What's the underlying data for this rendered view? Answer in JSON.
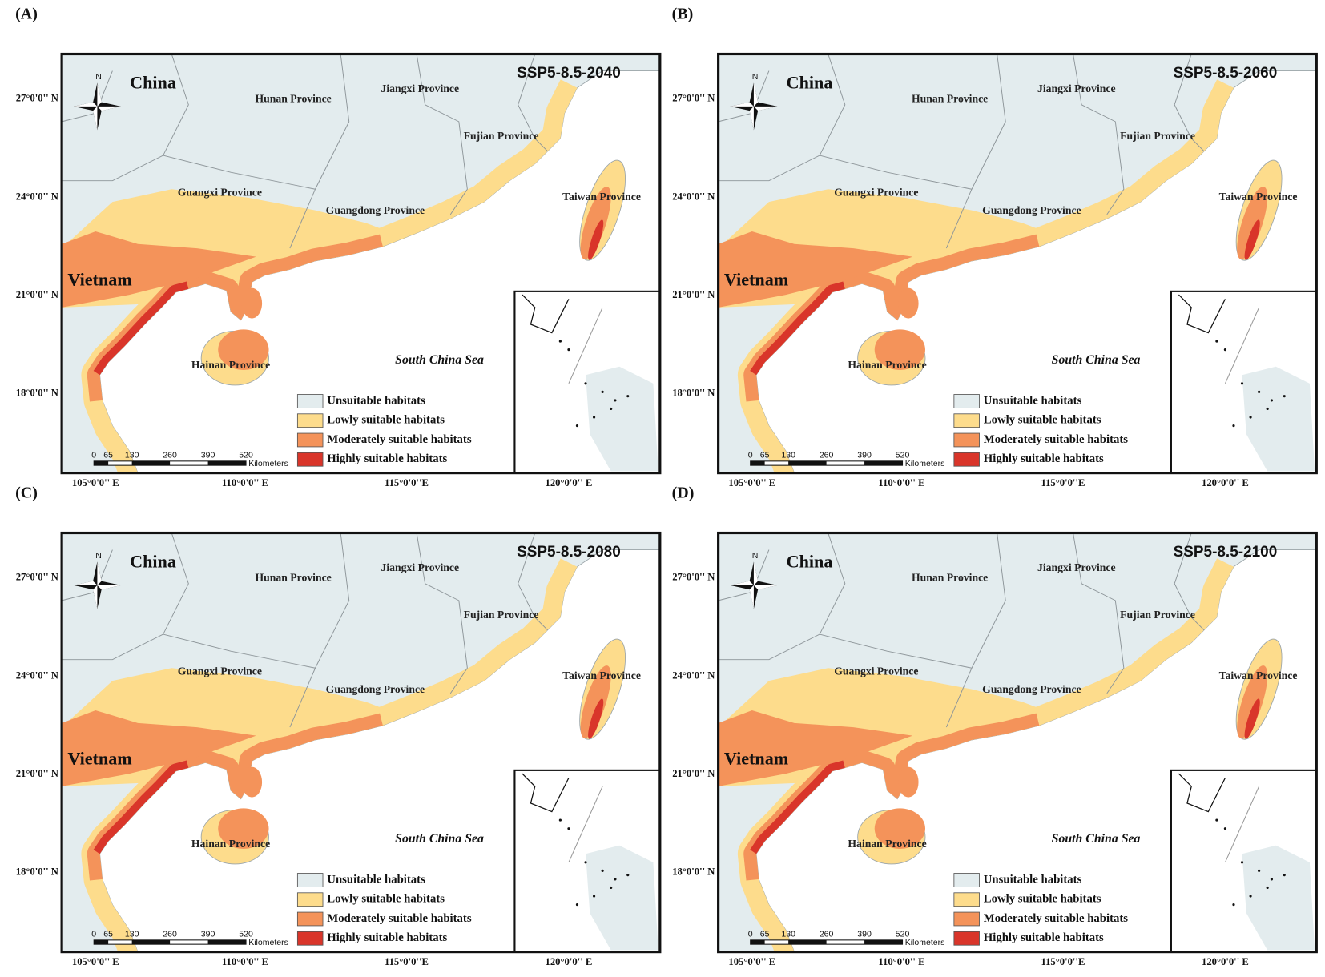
{
  "panels": [
    {
      "label": "(A)",
      "scenario": "SSP5-8.5-2040",
      "countries": [
        "China",
        "Vietnam"
      ],
      "provinces": [
        "Hunan Province",
        "Jiangxi Province",
        "Fujian Province",
        "Guangxi Province",
        "Guangdong Province",
        "Taiwan Province",
        "Hainan Province"
      ],
      "sea": "South China Sea",
      "legend": [
        {
          "label": "Unsuitable habitats",
          "color": "#e3ecee"
        },
        {
          "label": "Lowly suitable habitats",
          "color": "#fddc8c"
        },
        {
          "label": "Moderately suitable habitats",
          "color": "#f4935a"
        },
        {
          "label": "Highly suitable habitats",
          "color": "#d9352a"
        }
      ],
      "scale": {
        "ticks": [
          0,
          65,
          130,
          260,
          390,
          520
        ],
        "unit": "Kilometers"
      },
      "lat_ticks": [
        "27°0'0'' N",
        "24°0'0'' N",
        "21°0'0'' N",
        "18°0'0'' N"
      ],
      "lon_ticks": [
        "105°0'0'' E",
        "110°0'0'' E",
        "115°0'0''E",
        "120°0'0'' E"
      ]
    },
    {
      "label": "(B)",
      "scenario": "SSP5-8.5-2060",
      "countries": [
        "China",
        "Vietnam"
      ],
      "provinces": [
        "Hunan Province",
        "Jiangxi Province",
        "Fujian Province",
        "Guangxi Province",
        "Guangdong Province",
        "Taiwan Province",
        "Hainan Province"
      ],
      "sea": "South China Sea",
      "legend": [
        {
          "label": "Unsuitable habitats",
          "color": "#e3ecee"
        },
        {
          "label": "Lowly suitable habitats",
          "color": "#fddc8c"
        },
        {
          "label": "Moderately suitable habitats",
          "color": "#f4935a"
        },
        {
          "label": "Highly suitable habitats",
          "color": "#d9352a"
        }
      ],
      "scale": {
        "ticks": [
          0,
          65,
          130,
          260,
          390,
          520
        ],
        "unit": "Kilometers"
      },
      "lat_ticks": [
        "27°0'0'' N",
        "24°0'0'' N",
        "21°0'0'' N",
        "18°0'0'' N"
      ],
      "lon_ticks": [
        "105°0'0'' E",
        "110°0'0'' E",
        "115°0'0''E",
        "120°0'0'' E"
      ]
    },
    {
      "label": "(C)",
      "scenario": "SSP5-8.5-2080",
      "countries": [
        "China",
        "Vietnam"
      ],
      "provinces": [
        "Hunan Province",
        "Jiangxi Province",
        "Fujian Province",
        "Guangxi Province",
        "Guangdong Province",
        "Taiwan Province",
        "Hainan Province"
      ],
      "sea": "South China Sea",
      "legend": [
        {
          "label": "Unsuitable habitats",
          "color": "#e3ecee"
        },
        {
          "label": "Lowly suitable habitats",
          "color": "#fddc8c"
        },
        {
          "label": "Moderately suitable habitats",
          "color": "#f4935a"
        },
        {
          "label": "Highly suitable habitats",
          "color": "#d9352a"
        }
      ],
      "scale": {
        "ticks": [
          0,
          65,
          130,
          260,
          390,
          520
        ],
        "unit": "Kilometers"
      },
      "lat_ticks": [
        "27°0'0'' N",
        "24°0'0'' N",
        "21°0'0'' N",
        "18°0'0'' N"
      ],
      "lon_ticks": [
        "105°0'0'' E",
        "110°0'0'' E",
        "115°0'0''E",
        "120°0'0'' E"
      ]
    },
    {
      "label": "(D)",
      "scenario": "SSP5-8.5-2100",
      "countries": [
        "China",
        "Vietnam"
      ],
      "provinces": [
        "Hunan Province",
        "Jiangxi Province",
        "Fujian Province",
        "Guangxi Province",
        "Guangdong Province",
        "Taiwan Province",
        "Hainan Province"
      ],
      "sea": "South China Sea",
      "legend": [
        {
          "label": "Unsuitable habitats",
          "color": "#e3ecee"
        },
        {
          "label": "Lowly suitable habitats",
          "color": "#fddc8c"
        },
        {
          "label": "Moderately suitable habitats",
          "color": "#f4935a"
        },
        {
          "label": "Highly suitable habitats",
          "color": "#d9352a"
        }
      ],
      "scale": {
        "ticks": [
          0,
          65,
          130,
          260,
          390,
          520
        ],
        "unit": "Kilometers"
      },
      "lat_ticks": [
        "27°0'0'' N",
        "24°0'0'' N",
        "21°0'0'' N",
        "18°0'0'' N"
      ],
      "lon_ticks": [
        "105°0'0'' E",
        "110°0'0'' E",
        "115°0'0''E",
        "120°0'0'' E"
      ]
    }
  ]
}
